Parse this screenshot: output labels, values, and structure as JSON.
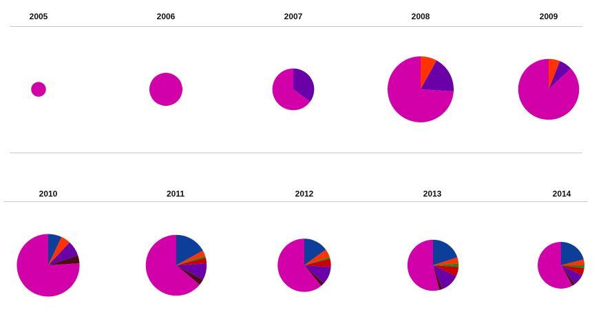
{
  "chart_data": [
    {
      "type": "pie",
      "title": "2005",
      "total": 1,
      "slices": [
        {
          "color": "#d100a8",
          "value": 100
        }
      ]
    },
    {
      "type": "pie",
      "title": "2006",
      "total": 5,
      "slices": [
        {
          "color": "#d100a8",
          "value": 100
        }
      ]
    },
    {
      "type": "pie",
      "title": "2007",
      "total": 8,
      "slices": [
        {
          "color": "#6a00a8",
          "value": 35
        },
        {
          "color": "#d100a8",
          "value": 65
        }
      ]
    },
    {
      "type": "pie",
      "title": "2008",
      "total": 20,
      "slices": [
        {
          "color": "#ff3300",
          "value": 8
        },
        {
          "color": "#6a00a8",
          "value": 18
        },
        {
          "color": "#d100a8",
          "value": 74
        }
      ]
    },
    {
      "type": "pie",
      "title": "2009",
      "total": 17,
      "slices": [
        {
          "color": "#ff3300",
          "value": 6
        },
        {
          "color": "#6a00a8",
          "value": 7
        },
        {
          "color": "#d100a8",
          "value": 87
        }
      ]
    },
    {
      "type": "pie",
      "title": "2010",
      "total": 18,
      "slices": [
        {
          "color": "#0b3f9a",
          "value": 7
        },
        {
          "color": "#ff3300",
          "value": 5
        },
        {
          "color": "#6a00a8",
          "value": 8
        },
        {
          "color": "#4a1010",
          "value": 4
        },
        {
          "color": "#d100a8",
          "value": 76
        }
      ]
    },
    {
      "type": "pie",
      "title": "2011",
      "total": 17,
      "slices": [
        {
          "color": "#0b3f9a",
          "value": 17
        },
        {
          "color": "#ff3300",
          "value": 3
        },
        {
          "color": "#1a8a1a",
          "value": 1
        },
        {
          "color": "#cc0000",
          "value": 3
        },
        {
          "color": "#6a00a8",
          "value": 9
        },
        {
          "color": "#4a1010",
          "value": 3
        },
        {
          "color": "#d100a8",
          "value": 64
        }
      ]
    },
    {
      "type": "pie",
      "title": "2012",
      "total": 13,
      "slices": [
        {
          "color": "#0b3f9a",
          "value": 15
        },
        {
          "color": "#ff3300",
          "value": 5
        },
        {
          "color": "#1a8a1a",
          "value": 1
        },
        {
          "color": "#cc0000",
          "value": 5
        },
        {
          "color": "#6a00a8",
          "value": 11
        },
        {
          "color": "#4a1010",
          "value": 2
        },
        {
          "color": "#d100a8",
          "value": 61
        }
      ]
    },
    {
      "type": "pie",
      "title": "2013",
      "total": 12,
      "slices": [
        {
          "color": "#0b3f9a",
          "value": 20
        },
        {
          "color": "#ff3300",
          "value": 4
        },
        {
          "color": "#1a8a1a",
          "value": 2
        },
        {
          "color": "#cc0000",
          "value": 6
        },
        {
          "color": "#6a00a8",
          "value": 12
        },
        {
          "color": "#4a1010",
          "value": 2
        },
        {
          "color": "#d100a8",
          "value": 54
        }
      ]
    },
    {
      "type": "pie",
      "title": "2014",
      "total": 10,
      "slices": [
        {
          "color": "#0b3f9a",
          "value": 21
        },
        {
          "color": "#ff3300",
          "value": 4
        },
        {
          "color": "#1a8a1a",
          "value": 2
        },
        {
          "color": "#cc0000",
          "value": 5
        },
        {
          "color": "#6a00a8",
          "value": 8
        },
        {
          "color": "#4a1010",
          "value": 2
        },
        {
          "color": "#d100a8",
          "value": 58
        }
      ]
    }
  ]
}
